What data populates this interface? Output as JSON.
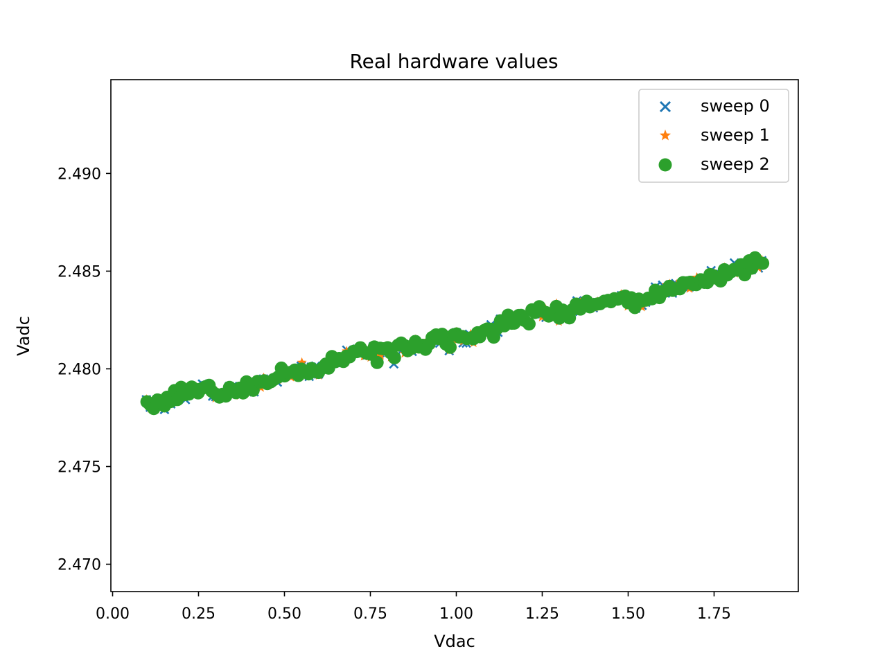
{
  "chart_data": {
    "type": "scatter",
    "title": "Real hardware values",
    "xlabel": "Vdac",
    "ylabel": "Vadc",
    "xlim": [
      -0.005,
      1.995
    ],
    "ylim": [
      2.4686,
      2.4948
    ],
    "xticks": [
      "0.00",
      "0.25",
      "0.50",
      "0.75",
      "1.00",
      "1.25",
      "1.50",
      "1.75"
    ],
    "xtick_values": [
      0.0,
      0.25,
      0.5,
      0.75,
      1.0,
      1.25,
      1.5,
      1.75
    ],
    "yticks": [
      "2.470",
      "2.475",
      "2.480",
      "2.485",
      "2.490"
    ],
    "ytick_values": [
      2.47,
      2.475,
      2.48,
      2.485,
      2.49
    ],
    "grid": false,
    "legend_position": "top-right",
    "colors": {
      "sweep0": "#1f77b4",
      "sweep1": "#ff7f0e",
      "sweep2": "#2ca02c"
    },
    "x_range": [
      0.1,
      1.89
    ],
    "trend_line": {
      "x": [
        0.1,
        1.89
      ],
      "y": [
        2.4781,
        2.4852
      ]
    },
    "series": [
      {
        "name": "sweep 0",
        "marker": "x",
        "color": "#1f77b4",
        "x_range": [
          0.1,
          1.89
        ],
        "y_range": [
          2.4779,
          2.4854
        ]
      },
      {
        "name": "sweep 1",
        "marker": "star",
        "color": "#ff7f0e",
        "x_range": [
          0.1,
          1.89
        ],
        "y_range": [
          2.4777,
          2.4857
        ]
      },
      {
        "name": "sweep 2",
        "marker": "circle",
        "color": "#2ca02c",
        "x_range": [
          0.1,
          1.89
        ],
        "y_range": [
          2.4777,
          2.4853
        ]
      }
    ]
  }
}
